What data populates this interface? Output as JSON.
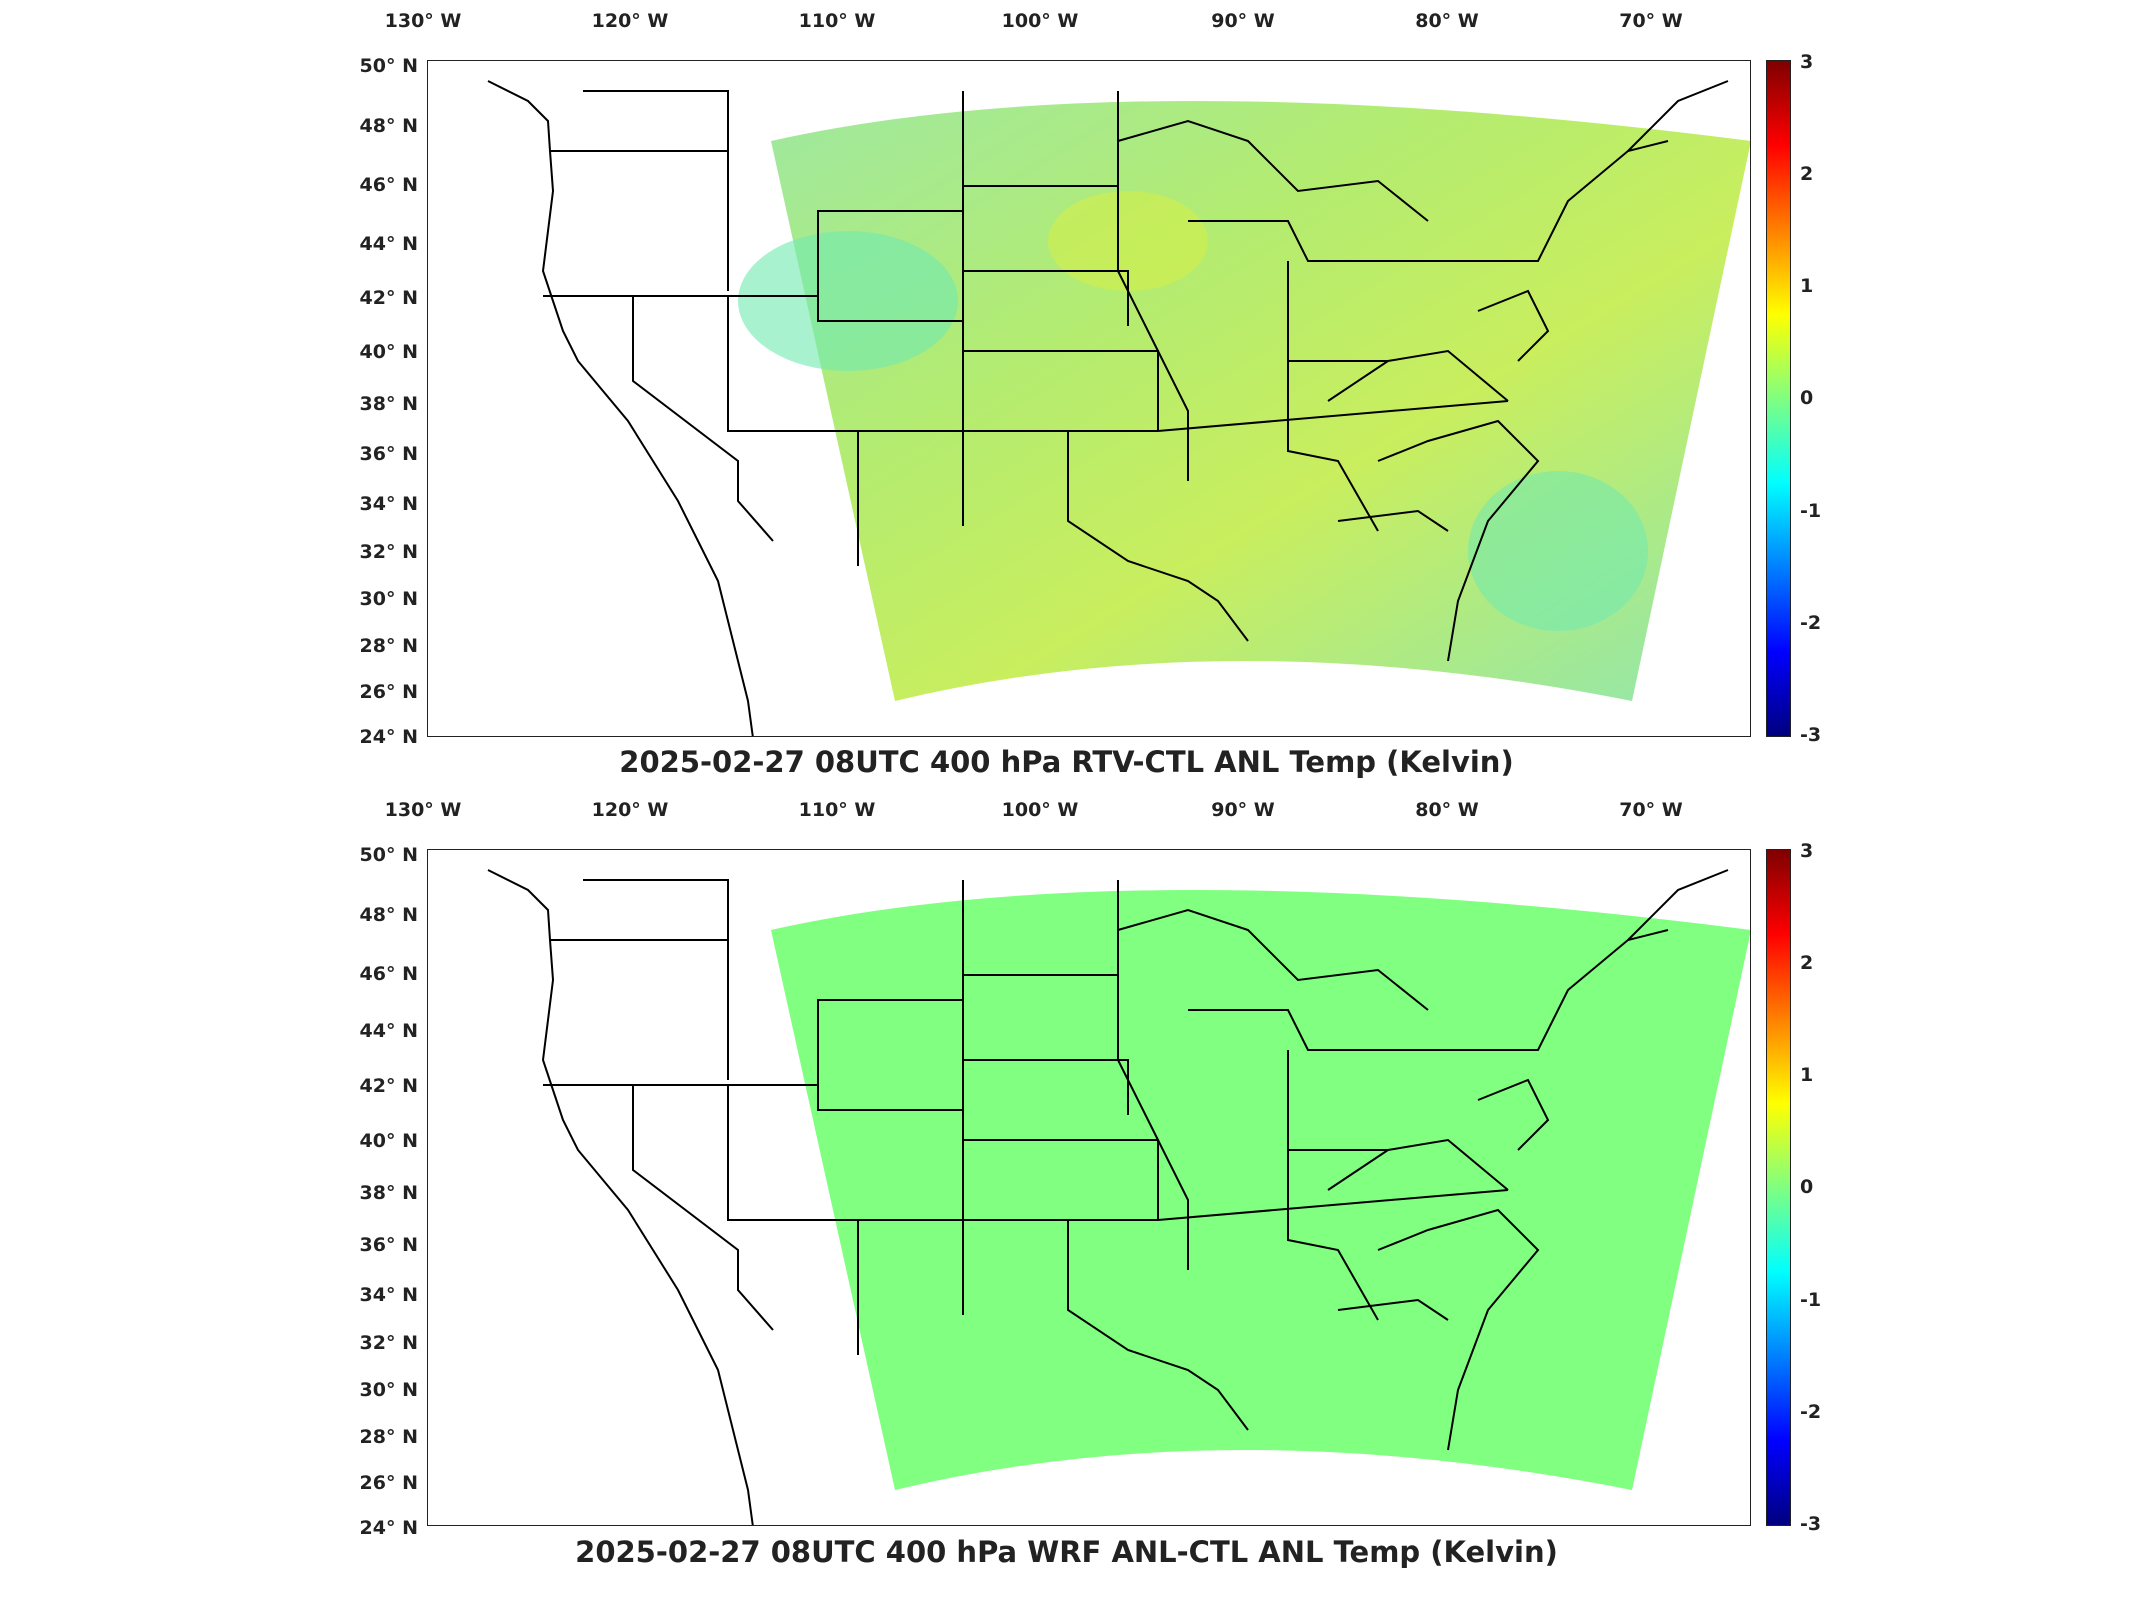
{
  "panels": [
    {
      "title": "2025-02-27 08UTC 400 hPa RTV-CTL ANL Temp (Kelvin)",
      "fill": "#a8e86a",
      "fill_secondary": "#6fe9b0",
      "lon_ticks": [
        "130° W",
        "120° W",
        "110° W",
        "100° W",
        "90° W",
        "80° W",
        "70° W"
      ],
      "lat_ticks": [
        "50° N",
        "48° N",
        "46° N",
        "44° N",
        "42° N",
        "40° N",
        "38° N",
        "36° N",
        "34° N",
        "32° N",
        "30° N",
        "28° N",
        "26° N",
        "24° N"
      ],
      "colorbar_ticks": [
        "3",
        "2",
        "1",
        "0",
        "-1",
        "-2",
        "-3"
      ]
    },
    {
      "title": "2025-02-27 08UTC 400 hPa WRF ANL-CTL ANL Temp (Kelvin)",
      "fill": "#80ff80",
      "fill_secondary": "#80ff80",
      "lon_ticks": [
        "130° W",
        "120° W",
        "110° W",
        "100° W",
        "90° W",
        "80° W",
        "70° W"
      ],
      "lat_ticks": [
        "50° N",
        "48° N",
        "46° N",
        "44° N",
        "42° N",
        "40° N",
        "38° N",
        "36° N",
        "34° N",
        "32° N",
        "30° N",
        "28° N",
        "26° N",
        "24° N"
      ],
      "colorbar_ticks": [
        "3",
        "2",
        "1",
        "0",
        "-1",
        "-2",
        "-3"
      ]
    }
  ],
  "colorbar": {
    "min": -3,
    "max": 3,
    "colormap": "jet"
  }
}
